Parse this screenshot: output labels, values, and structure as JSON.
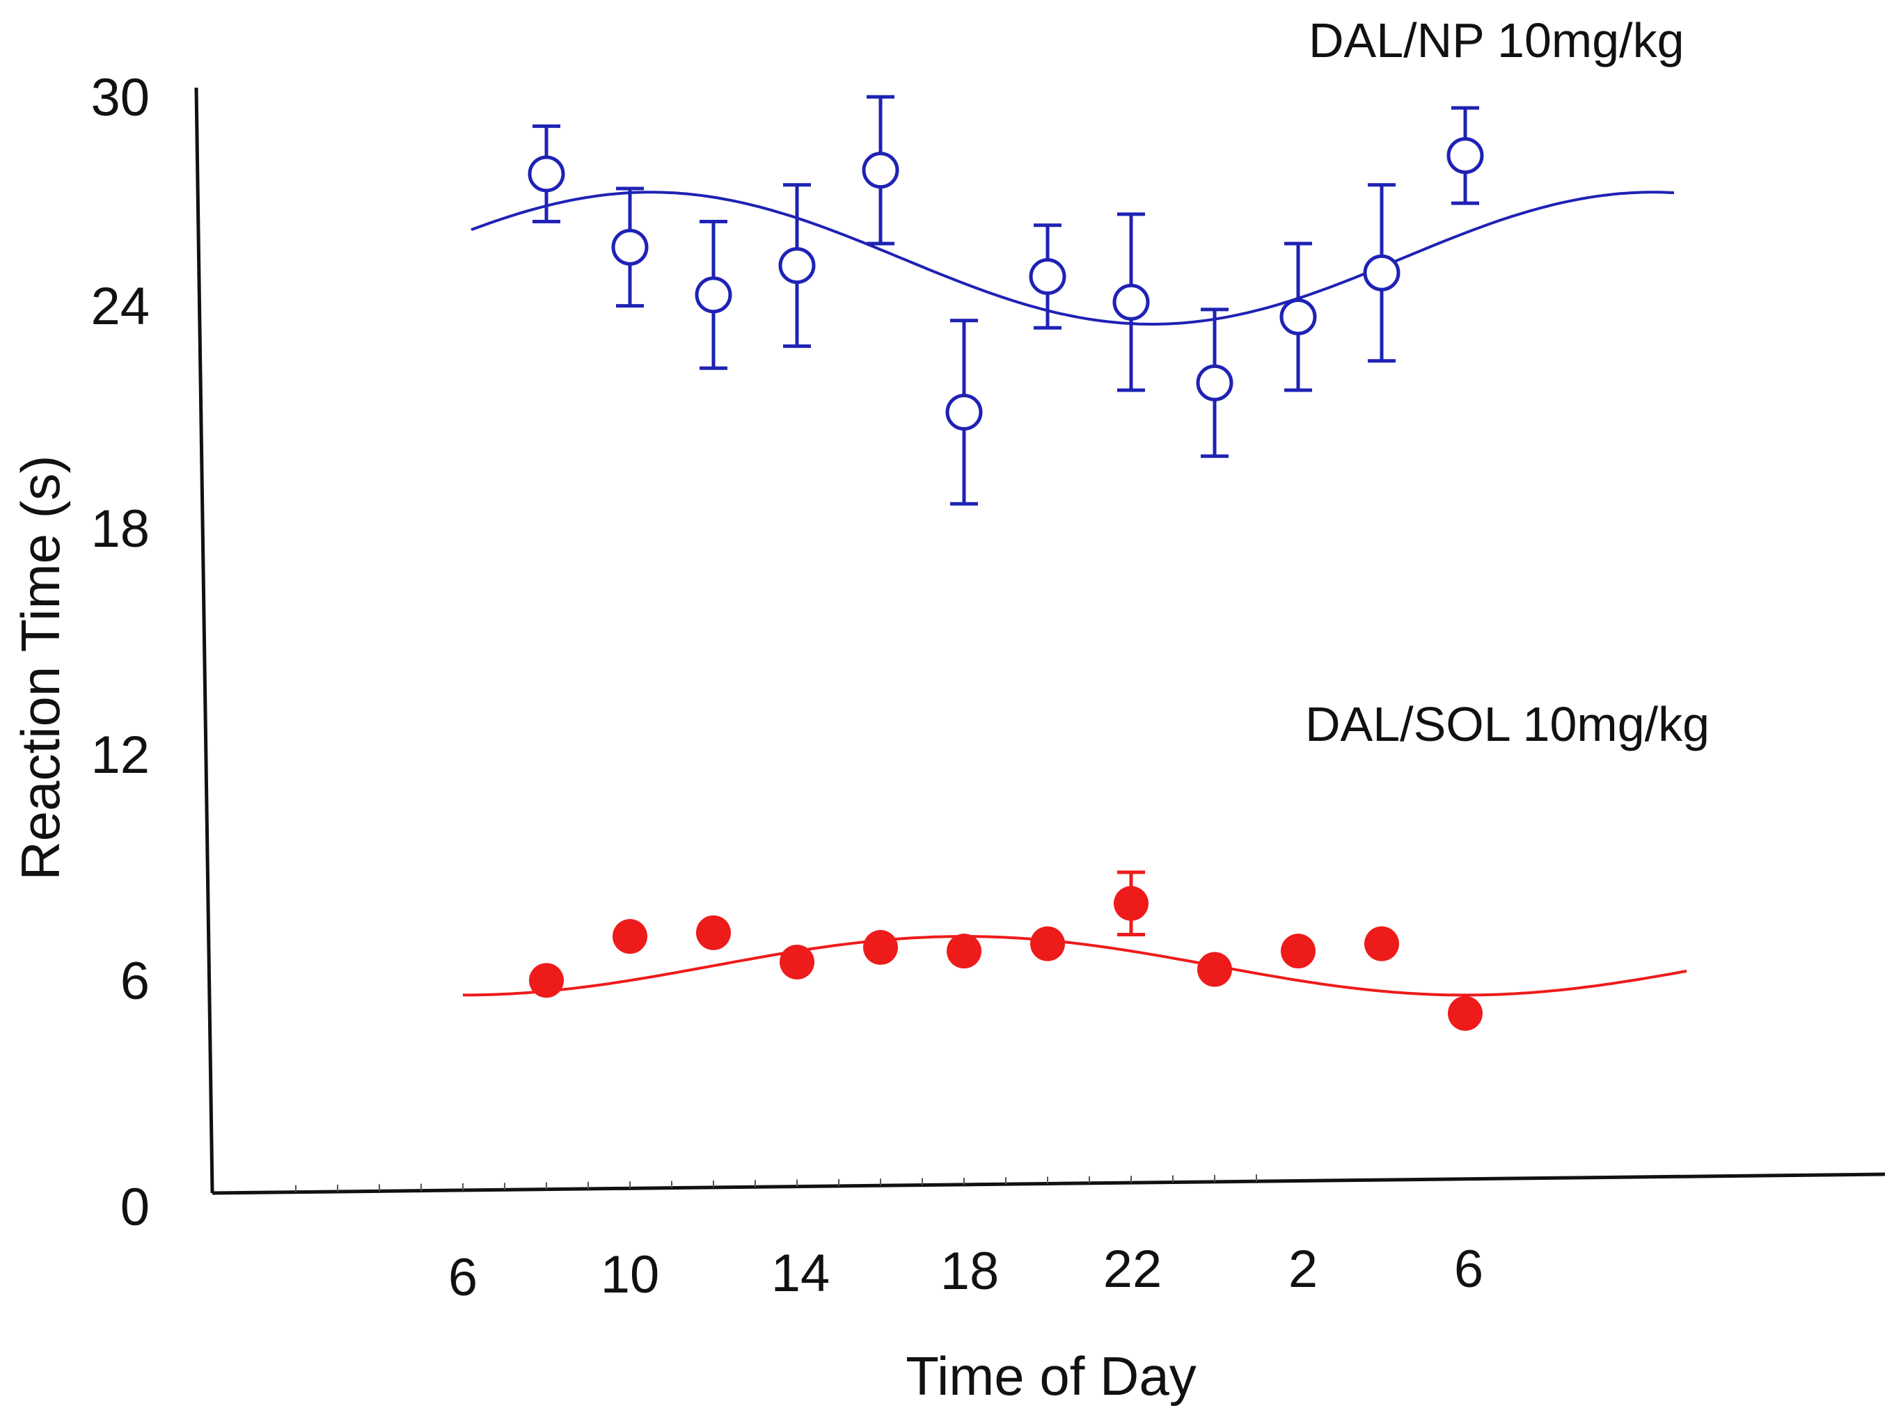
{
  "chart_data": {
    "type": "scatter",
    "title": "",
    "xlabel": "Time of Day",
    "ylabel": "Reaction Time (s)",
    "ylim": [
      0,
      30
    ],
    "yticks": [
      "0",
      "6",
      "12",
      "18",
      "24",
      "30"
    ],
    "xticks": [
      "6",
      "10",
      "14",
      "18",
      "22",
      "2",
      "6"
    ],
    "grid": false,
    "series": [
      {
        "name": "DAL/NP 10mg/kg",
        "marker": "open-circle",
        "color": "#1f22b4",
        "x": [
          8,
          10,
          12,
          14,
          16,
          18,
          20,
          22,
          24,
          26,
          28,
          30
        ],
        "values": [
          27.8,
          25.8,
          24.5,
          25.3,
          27.9,
          21.3,
          25.0,
          24.3,
          22.1,
          23.9,
          25.1,
          28.3
        ],
        "errors": [
          1.3,
          1.6,
          2.0,
          2.2,
          2.0,
          2.5,
          1.4,
          2.4,
          2.0,
          2.0,
          2.4,
          1.3
        ],
        "fit": {
          "mesor": 25.5,
          "amplitude": 1.8,
          "peak_hour": 10.5,
          "x_range": [
            6.2,
            35.0
          ]
        }
      },
      {
        "name": "DAL/SOL 10mg/kg",
        "marker": "filled-circle",
        "color": "#ee1b1b",
        "x": [
          8,
          10,
          12,
          14,
          16,
          18,
          20,
          22,
          24,
          26,
          28,
          30
        ],
        "values": [
          5.8,
          7.0,
          7.1,
          6.3,
          6.7,
          6.6,
          6.8,
          7.9,
          6.1,
          6.6,
          6.8,
          4.9
        ],
        "errors": [
          0,
          0,
          0,
          0,
          0,
          0,
          0,
          0.85,
          0,
          0,
          0,
          0
        ],
        "fit": {
          "mesor": 6.2,
          "amplitude": 0.8,
          "peak_hour": 18.0,
          "x_range": [
            6.0,
            35.3
          ]
        }
      }
    ]
  }
}
